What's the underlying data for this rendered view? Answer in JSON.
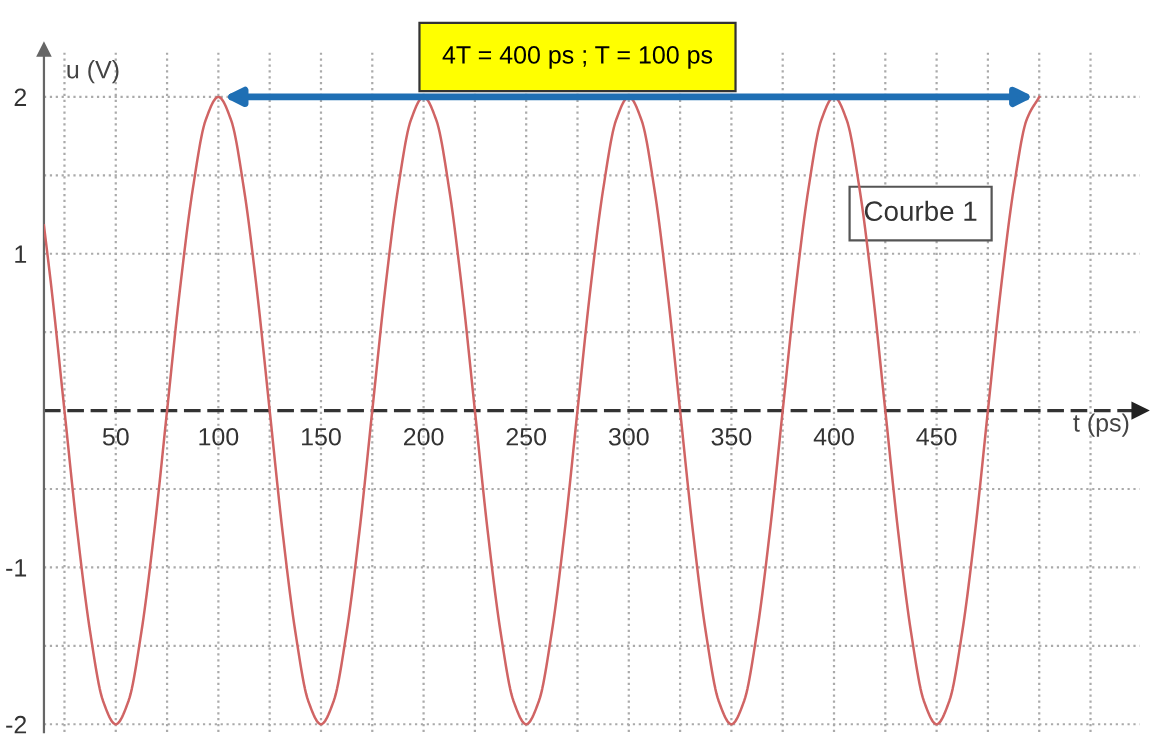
{
  "chart_data": {
    "type": "line",
    "xlabel": "t (ps)",
    "ylabel": "u (V)",
    "annotations": [
      {
        "text": "4T = 400 ps ; T = 100 ps",
        "x": 300,
        "y": 2
      },
      "Courbe 1"
    ],
    "series": [
      {
        "color": "#d06464",
        "x": [
          15,
          18.75,
          25,
          31.25,
          37.5,
          43.75,
          50,
          56.25,
          62.5,
          68.75,
          75,
          81.25,
          87.5,
          93.75,
          100,
          106.25,
          112.5,
          118.75,
          125,
          131.25,
          137.5,
          143.75,
          150,
          156.25,
          162.5,
          168.75,
          175,
          181.25,
          187.5,
          193.75,
          200,
          206.25,
          212.5,
          218.75,
          225,
          231.25,
          237.5,
          243.75,
          250,
          256.25,
          262.5,
          268.75,
          275,
          281.25,
          287.5,
          293.75,
          300,
          306.25,
          312.5,
          318.75,
          325,
          331.25,
          337.5,
          343.75,
          350,
          356.25,
          362.5,
          368.75,
          375,
          381.25,
          387.5,
          393.75,
          400,
          406.25,
          412.5,
          418.75,
          425,
          431.25,
          437.5,
          443.75,
          450,
          456.25,
          462.5,
          468.75,
          475,
          481.25,
          487.5,
          493.75,
          500
        ],
        "values": [
          1.18,
          0.77,
          0,
          -0.77,
          -1.41,
          -1.85,
          -2,
          -1.85,
          -1.41,
          -0.77,
          0,
          0.77,
          1.41,
          1.85,
          2,
          1.85,
          1.41,
          0.77,
          0,
          -0.77,
          -1.41,
          -1.85,
          -2,
          -1.85,
          -1.41,
          -0.77,
          0,
          0.77,
          1.41,
          1.85,
          2,
          1.85,
          1.41,
          0.77,
          0,
          -0.77,
          -1.41,
          -1.85,
          -2,
          -1.85,
          -1.41,
          -0.77,
          0,
          0.77,
          1.41,
          1.85,
          2,
          1.85,
          1.41,
          0.77,
          0,
          -0.77,
          -1.41,
          -1.85,
          -2,
          -1.85,
          -1.41,
          -0.77,
          0,
          0.77,
          1.41,
          1.85,
          2,
          1.85,
          1.41,
          0.77,
          0,
          -0.77,
          -1.41,
          -1.85,
          -2,
          -1.85,
          -1.41,
          -0.77,
          0,
          0.77,
          1.41,
          1.85,
          2
        ]
      }
    ],
    "xlim": [
      15,
      549
    ],
    "ylim": [
      -2.05,
      2.3
    ],
    "xticks": [
      {
        "value": 25,
        "label": null
      },
      50,
      {
        "value": 75,
        "label": null
      },
      100,
      {
        "value": 125,
        "label": null
      },
      150,
      {
        "value": 175,
        "label": null
      },
      200,
      {
        "value": 225,
        "label": null
      },
      250,
      {
        "value": 275,
        "label": null
      },
      300,
      {
        "value": 325,
        "label": null
      },
      350,
      {
        "value": 375,
        "label": null
      },
      400,
      {
        "value": 425,
        "label": null
      },
      450,
      {
        "value": 475,
        "label": null
      },
      {
        "value": 500,
        "label": null
      },
      {
        "value": 525,
        "label": null
      }
    ],
    "yticks": [
      -2,
      {
        "value": -1.5,
        "label": null
      },
      -1,
      {
        "value": -0.5,
        "label": null
      },
      {
        "value": 0.5,
        "label": null
      },
      1,
      {
        "value": 1.5,
        "label": null
      },
      2
    ],
    "ref_lines": [
      {
        "axis": "y",
        "value": 0,
        "color": "#333333",
        "line_style": "dashed"
      }
    ],
    "grid": true,
    "marker": "none",
    "line_style": "solid"
  }
}
